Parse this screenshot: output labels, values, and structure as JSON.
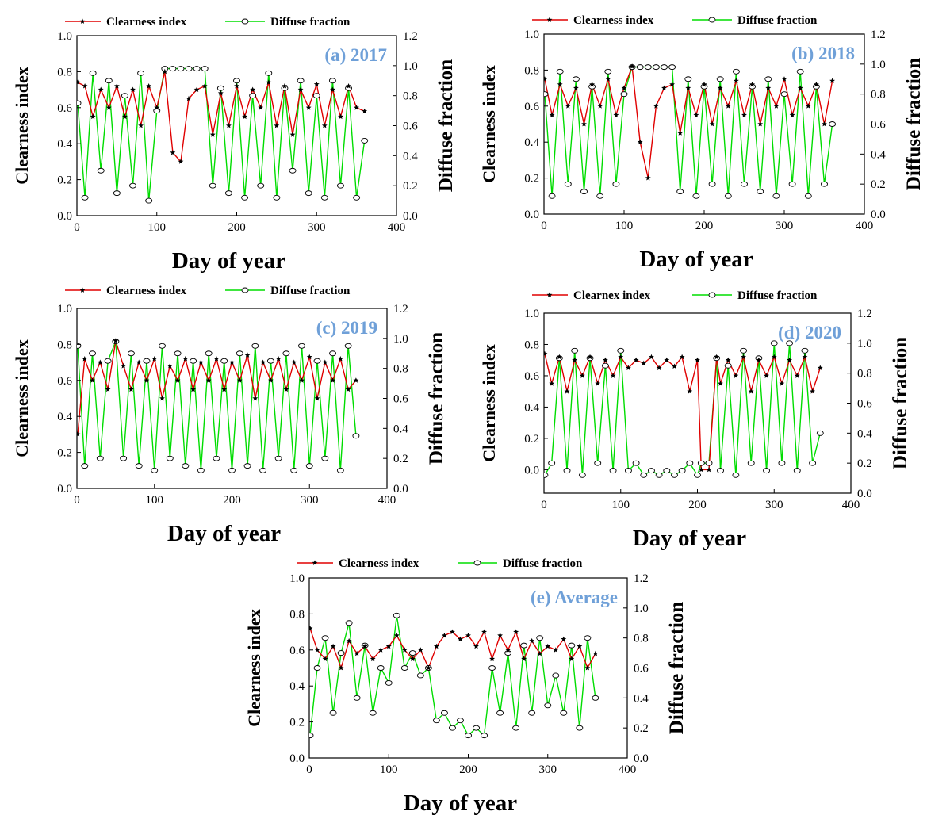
{
  "figure": {
    "colors": {
      "clearness": "#e00000",
      "diffuse": "#00dd00",
      "star": "#000000",
      "circle_fill": "#ffffff",
      "circle_stroke": "#000000",
      "panel_label": "#6fa0d8",
      "axis": "#000000"
    }
  },
  "chart_data": [
    {
      "type": "line",
      "panel_label": "(a) 2017",
      "xlabel": "Day of year",
      "ylabel": "Clearness index",
      "y2label": "Diffuse fraction",
      "xlim": [
        0,
        400
      ],
      "ylim": [
        0,
        1.0
      ],
      "y2lim": [
        0,
        1.2
      ],
      "xticks": [
        "0",
        "100",
        "200",
        "300",
        "400"
      ],
      "yticks": [
        "0.0",
        "0.2",
        "0.4",
        "0.6",
        "0.8",
        "1.0"
      ],
      "y2ticks": [
        "0.0",
        "0.2",
        "0.4",
        "0.6",
        "0.8",
        "1.0",
        "1.2"
      ],
      "legend": [
        "Clearness index",
        "Diffuse fraction"
      ],
      "legend_position": "top",
      "series": [
        {
          "name": "Clearness index",
          "x": [
            1,
            10,
            20,
            30,
            40,
            50,
            60,
            70,
            80,
            90,
            100,
            110,
            120,
            130,
            140,
            150,
            160,
            170,
            180,
            190,
            200,
            210,
            220,
            230,
            240,
            250,
            260,
            270,
            280,
            290,
            300,
            310,
            320,
            330,
            340,
            350,
            360
          ],
          "y": [
            0.74,
            0.72,
            0.55,
            0.7,
            0.6,
            0.72,
            0.55,
            0.7,
            0.5,
            0.72,
            0.6,
            0.8,
            0.35,
            0.3,
            0.65,
            0.7,
            0.72,
            0.45,
            0.68,
            0.5,
            0.72,
            0.55,
            0.7,
            0.6,
            0.74,
            0.5,
            0.72,
            0.45,
            0.7,
            0.6,
            0.73,
            0.5,
            0.7,
            0.55,
            0.72,
            0.6,
            0.58
          ]
        },
        {
          "name": "Diffuse fraction",
          "x": [
            1,
            10,
            20,
            30,
            40,
            50,
            60,
            70,
            80,
            90,
            100,
            110,
            120,
            130,
            140,
            150,
            160,
            170,
            180,
            190,
            200,
            210,
            220,
            230,
            240,
            250,
            260,
            270,
            280,
            290,
            300,
            310,
            320,
            330,
            340,
            350,
            360
          ],
          "y": [
            0.75,
            0.12,
            0.95,
            0.3,
            0.9,
            0.15,
            0.8,
            0.2,
            0.95,
            0.1,
            0.7,
            0.98,
            0.98,
            0.98,
            0.98,
            0.98,
            0.98,
            0.2,
            0.85,
            0.15,
            0.9,
            0.12,
            0.8,
            0.2,
            0.95,
            0.12,
            0.85,
            0.3,
            0.9,
            0.15,
            0.8,
            0.12,
            0.9,
            0.2,
            0.85,
            0.12,
            0.5
          ]
        }
      ]
    },
    {
      "type": "line",
      "panel_label": "(b) 2018",
      "xlabel": "Day of year",
      "ylabel": "Clearness index",
      "y2label": "Diffuse fraction",
      "xlim": [
        0,
        400
      ],
      "ylim": [
        0,
        1.0
      ],
      "y2lim": [
        0,
        1.2
      ],
      "xticks": [
        "0",
        "100",
        "200",
        "300",
        "400"
      ],
      "yticks": [
        "0.0",
        "0.2",
        "0.4",
        "0.6",
        "0.8",
        "1.0"
      ],
      "y2ticks": [
        "0.0",
        "0.2",
        "0.4",
        "0.6",
        "0.8",
        "1.0",
        "1.2"
      ],
      "legend": [
        "Clearness index",
        "Diffuse fraction"
      ],
      "legend_position": "top",
      "series": [
        {
          "name": "Clearness index",
          "x": [
            1,
            10,
            20,
            30,
            40,
            50,
            60,
            70,
            80,
            90,
            100,
            110,
            120,
            130,
            140,
            150,
            160,
            170,
            180,
            190,
            200,
            210,
            220,
            230,
            240,
            250,
            260,
            270,
            280,
            290,
            300,
            310,
            320,
            330,
            340,
            350,
            360
          ],
          "y": [
            0.75,
            0.55,
            0.72,
            0.6,
            0.7,
            0.5,
            0.72,
            0.6,
            0.75,
            0.55,
            0.7,
            0.82,
            0.4,
            0.2,
            0.6,
            0.7,
            0.72,
            0.45,
            0.7,
            0.55,
            0.72,
            0.5,
            0.7,
            0.6,
            0.74,
            0.55,
            0.72,
            0.5,
            0.7,
            0.6,
            0.75,
            0.55,
            0.7,
            0.6,
            0.72,
            0.5,
            0.74
          ]
        },
        {
          "name": "Diffuse fraction",
          "x": [
            1,
            10,
            20,
            30,
            40,
            50,
            60,
            70,
            80,
            90,
            100,
            110,
            120,
            130,
            140,
            150,
            160,
            170,
            180,
            190,
            200,
            210,
            220,
            230,
            240,
            250,
            260,
            270,
            280,
            290,
            300,
            310,
            320,
            330,
            340,
            350,
            360
          ],
          "y": [
            0.8,
            0.12,
            0.95,
            0.2,
            0.9,
            0.15,
            0.85,
            0.12,
            0.95,
            0.2,
            0.8,
            0.98,
            0.98,
            0.98,
            0.98,
            0.98,
            0.98,
            0.15,
            0.9,
            0.12,
            0.85,
            0.2,
            0.9,
            0.12,
            0.95,
            0.2,
            0.85,
            0.15,
            0.9,
            0.12,
            0.8,
            0.2,
            0.95,
            0.12,
            0.85,
            0.2,
            0.6
          ]
        }
      ]
    },
    {
      "type": "line",
      "panel_label": "(c) 2019",
      "xlabel": "Day of year",
      "ylabel": "Clearness index",
      "y2label": "Diffuse fraction",
      "xlim": [
        0,
        400
      ],
      "ylim": [
        0,
        1.0
      ],
      "y2lim": [
        0,
        1.2
      ],
      "xticks": [
        "0",
        "100",
        "200",
        "300",
        "400"
      ],
      "yticks": [
        "0.0",
        "0.2",
        "0.4",
        "0.6",
        "0.8",
        "1.0"
      ],
      "y2ticks": [
        "0.0",
        "0.2",
        "0.4",
        "0.6",
        "0.8",
        "1.0",
        "1.2"
      ],
      "legend": [
        "Clearness index",
        "Diffuse fraction"
      ],
      "legend_position": "top",
      "series": [
        {
          "name": "Clearness index",
          "x": [
            1,
            10,
            20,
            30,
            40,
            50,
            60,
            70,
            80,
            90,
            100,
            110,
            120,
            130,
            140,
            150,
            160,
            170,
            180,
            190,
            200,
            210,
            220,
            230,
            240,
            250,
            260,
            270,
            280,
            290,
            300,
            310,
            320,
            330,
            340,
            350,
            360
          ],
          "y": [
            0.3,
            0.72,
            0.6,
            0.7,
            0.55,
            0.82,
            0.68,
            0.55,
            0.7,
            0.6,
            0.72,
            0.5,
            0.68,
            0.6,
            0.72,
            0.55,
            0.7,
            0.6,
            0.72,
            0.55,
            0.7,
            0.6,
            0.74,
            0.5,
            0.7,
            0.6,
            0.72,
            0.55,
            0.7,
            0.6,
            0.73,
            0.5,
            0.7,
            0.6,
            0.72,
            0.55,
            0.6
          ]
        },
        {
          "name": "Diffuse fraction",
          "x": [
            1,
            10,
            20,
            30,
            40,
            50,
            60,
            70,
            80,
            90,
            100,
            110,
            120,
            130,
            140,
            150,
            160,
            170,
            180,
            190,
            200,
            210,
            220,
            230,
            240,
            250,
            260,
            270,
            280,
            290,
            300,
            310,
            320,
            330,
            340,
            350,
            360
          ],
          "y": [
            0.95,
            0.15,
            0.9,
            0.2,
            0.85,
            0.98,
            0.2,
            0.9,
            0.15,
            0.85,
            0.12,
            0.95,
            0.2,
            0.9,
            0.15,
            0.85,
            0.12,
            0.9,
            0.2,
            0.85,
            0.12,
            0.9,
            0.15,
            0.95,
            0.12,
            0.85,
            0.2,
            0.9,
            0.12,
            0.95,
            0.15,
            0.85,
            0.2,
            0.9,
            0.12,
            0.95,
            0.35
          ]
        }
      ]
    },
    {
      "type": "line",
      "panel_label": "(d) 2020",
      "xlabel": "Day of year",
      "ylabel": "Clearness index",
      "y2label": "Diffuse fraction",
      "xlim": [
        0,
        400
      ],
      "ylim": [
        -0.15,
        1.0
      ],
      "y2lim": [
        0,
        1.2
      ],
      "xticks": [
        "0",
        "100",
        "200",
        "300",
        "400"
      ],
      "yticks": [
        "0.0",
        "0.2",
        "0.4",
        "0.6",
        "0.8",
        "1.0"
      ],
      "y2ticks": [
        "0.0",
        "0.2",
        "0.4",
        "0.6",
        "0.8",
        "1.0",
        "1.2"
      ],
      "legend": [
        "Clearnex index",
        "Diffuse fraction"
      ],
      "legend_position": "top",
      "series": [
        {
          "name": "Clearnex index",
          "x": [
            1,
            10,
            20,
            30,
            40,
            50,
            60,
            70,
            80,
            90,
            100,
            110,
            120,
            130,
            140,
            150,
            160,
            170,
            180,
            190,
            200,
            205,
            215,
            225,
            230,
            240,
            250,
            260,
            270,
            280,
            290,
            300,
            310,
            320,
            330,
            340,
            350,
            360
          ],
          "y": [
            0.74,
            0.55,
            0.72,
            0.5,
            0.7,
            0.6,
            0.72,
            0.55,
            0.7,
            0.6,
            0.72,
            0.65,
            0.7,
            0.68,
            0.72,
            0.65,
            0.7,
            0.66,
            0.72,
            0.5,
            0.7,
            0.0,
            0.0,
            0.72,
            0.55,
            0.7,
            0.6,
            0.72,
            0.5,
            0.7,
            0.6,
            0.72,
            0.55,
            0.7,
            0.6,
            0.72,
            0.5,
            0.65
          ]
        },
        {
          "name": "Diffuse fraction",
          "x": [
            1,
            10,
            20,
            30,
            40,
            50,
            60,
            70,
            80,
            90,
            100,
            110,
            120,
            130,
            140,
            150,
            160,
            170,
            180,
            190,
            200,
            205,
            215,
            225,
            230,
            240,
            250,
            260,
            270,
            280,
            290,
            300,
            310,
            320,
            330,
            340,
            350,
            360
          ],
          "y": [
            0.12,
            0.2,
            0.9,
            0.15,
            0.95,
            0.12,
            0.9,
            0.2,
            0.85,
            0.15,
            0.95,
            0.15,
            0.2,
            0.12,
            0.15,
            0.12,
            0.15,
            0.12,
            0.15,
            0.2,
            0.12,
            0.2,
            0.2,
            0.9,
            0.15,
            0.85,
            0.12,
            0.95,
            0.2,
            0.9,
            0.15,
            1.0,
            0.2,
            1.0,
            0.15,
            0.95,
            0.2,
            0.4
          ]
        }
      ]
    },
    {
      "type": "line",
      "panel_label": "(e) Average",
      "xlabel": "Day of year",
      "ylabel": "Clearness index",
      "y2label": "Diffuse fraction",
      "xlim": [
        0,
        400
      ],
      "ylim": [
        0,
        1.0
      ],
      "y2lim": [
        0,
        1.2
      ],
      "xticks": [
        "0",
        "100",
        "200",
        "300",
        "400"
      ],
      "yticks": [
        "0.0",
        "0.2",
        "0.4",
        "0.6",
        "0.8",
        "1.0"
      ],
      "y2ticks": [
        "0.0",
        "0.2",
        "0.4",
        "0.6",
        "0.8",
        "1.0",
        "1.2"
      ],
      "legend": [
        "Clearness index",
        "Diffuse fraction"
      ],
      "legend_position": "top",
      "series": [
        {
          "name": "Clearness index",
          "x": [
            1,
            10,
            20,
            30,
            40,
            50,
            60,
            70,
            80,
            90,
            100,
            110,
            120,
            130,
            140,
            150,
            160,
            170,
            180,
            190,
            200,
            210,
            220,
            230,
            240,
            250,
            260,
            270,
            280,
            290,
            300,
            310,
            320,
            330,
            340,
            350,
            360
          ],
          "y": [
            0.72,
            0.6,
            0.55,
            0.62,
            0.5,
            0.65,
            0.58,
            0.62,
            0.55,
            0.6,
            0.62,
            0.68,
            0.6,
            0.55,
            0.6,
            0.5,
            0.62,
            0.68,
            0.7,
            0.66,
            0.68,
            0.62,
            0.7,
            0.55,
            0.68,
            0.6,
            0.7,
            0.55,
            0.65,
            0.58,
            0.62,
            0.6,
            0.66,
            0.55,
            0.62,
            0.5,
            0.58
          ]
        },
        {
          "name": "Diffuse fraction",
          "x": [
            1,
            10,
            20,
            30,
            40,
            50,
            60,
            70,
            80,
            90,
            100,
            110,
            120,
            130,
            140,
            150,
            160,
            170,
            180,
            190,
            200,
            210,
            220,
            230,
            240,
            250,
            260,
            270,
            280,
            290,
            300,
            310,
            320,
            330,
            340,
            350,
            360
          ],
          "y": [
            0.15,
            0.6,
            0.8,
            0.3,
            0.7,
            0.9,
            0.4,
            0.75,
            0.3,
            0.6,
            0.5,
            0.95,
            0.6,
            0.7,
            0.55,
            0.6,
            0.25,
            0.3,
            0.2,
            0.25,
            0.15,
            0.2,
            0.15,
            0.6,
            0.3,
            0.7,
            0.2,
            0.75,
            0.3,
            0.8,
            0.35,
            0.55,
            0.3,
            0.75,
            0.2,
            0.8,
            0.4
          ]
        }
      ]
    }
  ]
}
